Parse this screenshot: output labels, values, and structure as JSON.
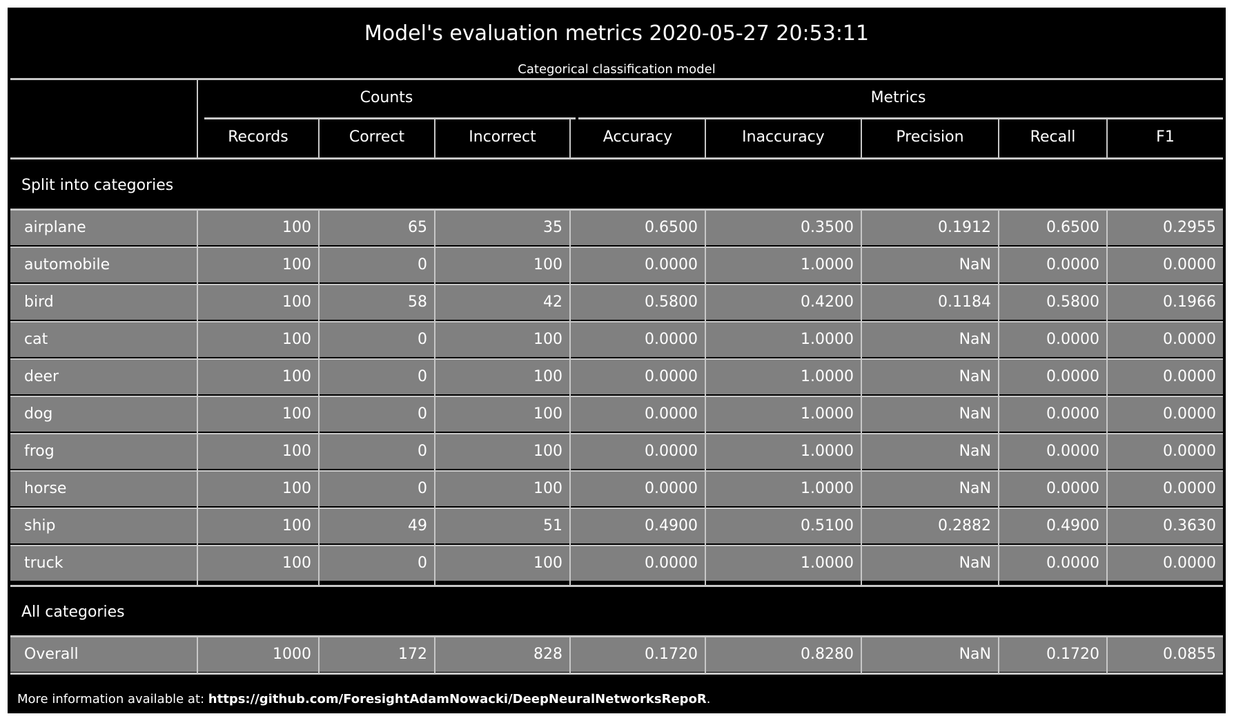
{
  "report": {
    "title": "Model's evaluation metrics 2020-05-27 20:53:11",
    "subtitle": "Categorical classification model"
  },
  "header": {
    "groups": {
      "counts": "Counts",
      "metrics": "Metrics"
    },
    "columns": [
      "Records",
      "Correct",
      "Incorrect",
      "Accuracy",
      "Inaccuracy",
      "Precision",
      "Recall",
      "F1"
    ]
  },
  "sections": {
    "categories_label": "Split into categories",
    "all_label": "All categories"
  },
  "rows": [
    [
      "airplane",
      "100",
      "65",
      "35",
      "0.6500",
      "0.3500",
      "0.1912",
      "0.6500",
      "0.2955"
    ],
    [
      "automobile",
      "100",
      "0",
      "100",
      "0.0000",
      "1.0000",
      "NaN",
      "0.0000",
      "0.0000"
    ],
    [
      "bird",
      "100",
      "58",
      "42",
      "0.5800",
      "0.4200",
      "0.1184",
      "0.5800",
      "0.1966"
    ],
    [
      "cat",
      "100",
      "0",
      "100",
      "0.0000",
      "1.0000",
      "NaN",
      "0.0000",
      "0.0000"
    ],
    [
      "deer",
      "100",
      "0",
      "100",
      "0.0000",
      "1.0000",
      "NaN",
      "0.0000",
      "0.0000"
    ],
    [
      "dog",
      "100",
      "0",
      "100",
      "0.0000",
      "1.0000",
      "NaN",
      "0.0000",
      "0.0000"
    ],
    [
      "frog",
      "100",
      "0",
      "100",
      "0.0000",
      "1.0000",
      "NaN",
      "0.0000",
      "0.0000"
    ],
    [
      "horse",
      "100",
      "0",
      "100",
      "0.0000",
      "1.0000",
      "NaN",
      "0.0000",
      "0.0000"
    ],
    [
      "ship",
      "100",
      "49",
      "51",
      "0.4900",
      "0.5100",
      "0.2882",
      "0.4900",
      "0.3630"
    ],
    [
      "truck",
      "100",
      "0",
      "100",
      "0.0000",
      "1.0000",
      "NaN",
      "0.0000",
      "0.0000"
    ]
  ],
  "overall": [
    "Overall",
    "1000",
    "172",
    "828",
    "0.1720",
    "0.8280",
    "NaN",
    "0.1720",
    "0.0855"
  ],
  "footer": {
    "prefix": "More information available at: ",
    "link": "https://github.com/ForesightAdamNowacki/DeepNeuralNetworksRepoR",
    "suffix": "."
  },
  "colors": {
    "background": "#000000",
    "row": "#808080",
    "grid": "#c8c8c8",
    "text": "#ffffff"
  }
}
